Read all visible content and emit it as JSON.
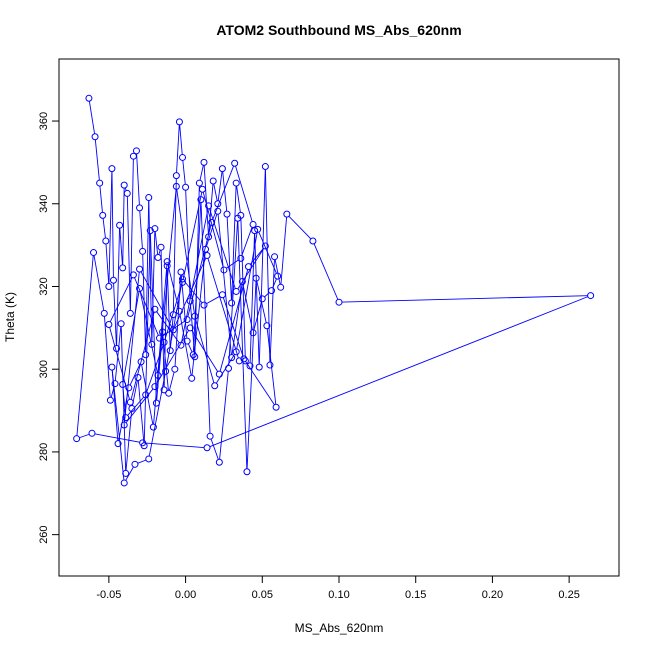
{
  "chart_data": {
    "type": "scatter",
    "connected": true,
    "title": "ATOM2 Southbound MS_Abs_620nm",
    "xlabel": "MS_Abs_620nm",
    "ylabel": "Theta (K)",
    "xlim": [
      -0.0825,
      0.2825
    ],
    "ylim": [
      250,
      375
    ],
    "xticks": [
      -0.05,
      0.0,
      0.05,
      0.1,
      0.15,
      0.2,
      0.25
    ],
    "xtick_labels": [
      "-0.05",
      "0.00",
      "0.05",
      "0.10",
      "0.15",
      "0.20",
      "0.25"
    ],
    "yticks": [
      260,
      280,
      300,
      320,
      340,
      360
    ],
    "ytick_labels": [
      "260",
      "280",
      "300",
      "320",
      "340",
      "360"
    ],
    "grid": false,
    "series": [
      {
        "color": "#0000ff",
        "marker": "open-circle",
        "x": [
          -0.063,
          -0.059,
          -0.056,
          -0.054,
          -0.052,
          -0.05,
          -0.048,
          -0.047,
          -0.045,
          -0.043,
          -0.041,
          -0.04,
          -0.038,
          -0.036,
          -0.034,
          -0.032,
          -0.03,
          -0.028,
          -0.026,
          -0.024,
          -0.022,
          -0.02,
          -0.018,
          -0.016,
          -0.014,
          -0.012,
          -0.01,
          -0.008,
          -0.006,
          -0.004,
          -0.002,
          0.0,
          0.003,
          0.006,
          0.009,
          0.012,
          0.015,
          0.018,
          0.021,
          0.024,
          0.027,
          0.03,
          0.033,
          0.036,
          0.039,
          0.042,
          0.045,
          0.048,
          0.052,
          0.055,
          0.058,
          0.062,
          0.066,
          0.083,
          0.1,
          0.264,
          0.014,
          -0.028,
          -0.061,
          -0.071,
          -0.06,
          -0.053,
          -0.049,
          -0.046,
          -0.042,
          -0.039,
          -0.035,
          -0.031,
          -0.027,
          -0.023,
          -0.019,
          -0.015,
          -0.011,
          -0.007,
          -0.003,
          0.001,
          0.005,
          0.01,
          0.016,
          0.022,
          0.028,
          0.034,
          0.04,
          0.046,
          0.053,
          0.059,
          0.038,
          0.024,
          0.012,
          -0.002,
          -0.013,
          -0.024,
          -0.033,
          -0.04,
          -0.048,
          -0.044,
          -0.037,
          -0.029,
          -0.021,
          -0.012,
          -0.004,
          0.004,
          0.013,
          0.021,
          0.03,
          0.037,
          0.044,
          0.05,
          0.056,
          0.06,
          0.047,
          0.033,
          0.019,
          0.006,
          -0.006,
          -0.018,
          -0.03,
          -0.041,
          -0.039,
          -0.026,
          -0.014,
          -0.002,
          0.011,
          0.025,
          0.036,
          0.044,
          0.032,
          0.017,
          0.001,
          -0.017,
          -0.034,
          -0.05,
          -0.036,
          -0.02,
          -0.003,
          0.015,
          0.033,
          0.052,
          0.041,
          0.022,
          0.003,
          -0.02,
          -0.04,
          -0.03,
          -0.008,
          0.014,
          0.035
        ],
        "y": [
          365.5,
          356.2,
          345.0,
          337.2,
          331.0,
          320.0,
          348.5,
          321.5,
          305.0,
          334.8,
          324.5,
          344.5,
          342.5,
          313.5,
          351.5,
          352.8,
          339.0,
          328.5,
          303.5,
          341.5,
          306.0,
          334.0,
          327.0,
          329.5,
          295.0,
          325.0,
          304.5,
          313.2,
          346.8,
          359.8,
          351.2,
          344.0,
          316.5,
          303.0,
          345.0,
          350.0,
          332.0,
          345.5,
          340.0,
          348.5,
          337.5,
          316.0,
          345.0,
          337.2,
          302.0,
          300.8,
          333.5,
          300.5,
          349.0,
          301.0,
          327.2,
          319.8,
          337.5,
          331.0,
          316.2,
          317.8,
          281.0,
          282.2,
          284.5,
          283.2,
          328.2,
          313.5,
          292.5,
          296.5,
          311.0,
          274.8,
          290.5,
          298.0,
          281.5,
          333.5,
          291.8,
          309.0,
          294.2,
          300.0,
          323.5,
          306.8,
          303.5,
          341.0,
          283.8,
          277.5,
          300.2,
          336.5,
          275.2,
          322.0,
          310.5,
          290.8,
          302.5,
          318.0,
          315.5,
          321.8,
          299.5,
          278.3,
          277.0,
          272.5,
          300.5,
          282.0,
          295.5,
          301.8,
          286.0,
          326.0,
          314.0,
          297.8,
          329.0,
          338.2,
          302.8,
          321.2,
          308.8,
          317.0,
          319.0,
          322.5,
          333.8,
          304.2,
          296.0,
          312.8,
          344.2,
          298.5,
          319.5,
          296.3,
          288.3,
          293.8,
          306.5,
          321.0,
          343.5,
          324.0,
          326.8,
          335.0,
          349.8,
          335.5,
          312.0,
          307.5,
          322.8,
          310.8,
          292.0,
          314.5,
          305.8,
          339.5,
          318.8,
          329.8,
          324.8,
          298.8,
          310.0,
          295.8,
          286.5,
          324.2,
          309.5,
          327.5,
          302.0
        ]
      }
    ]
  }
}
